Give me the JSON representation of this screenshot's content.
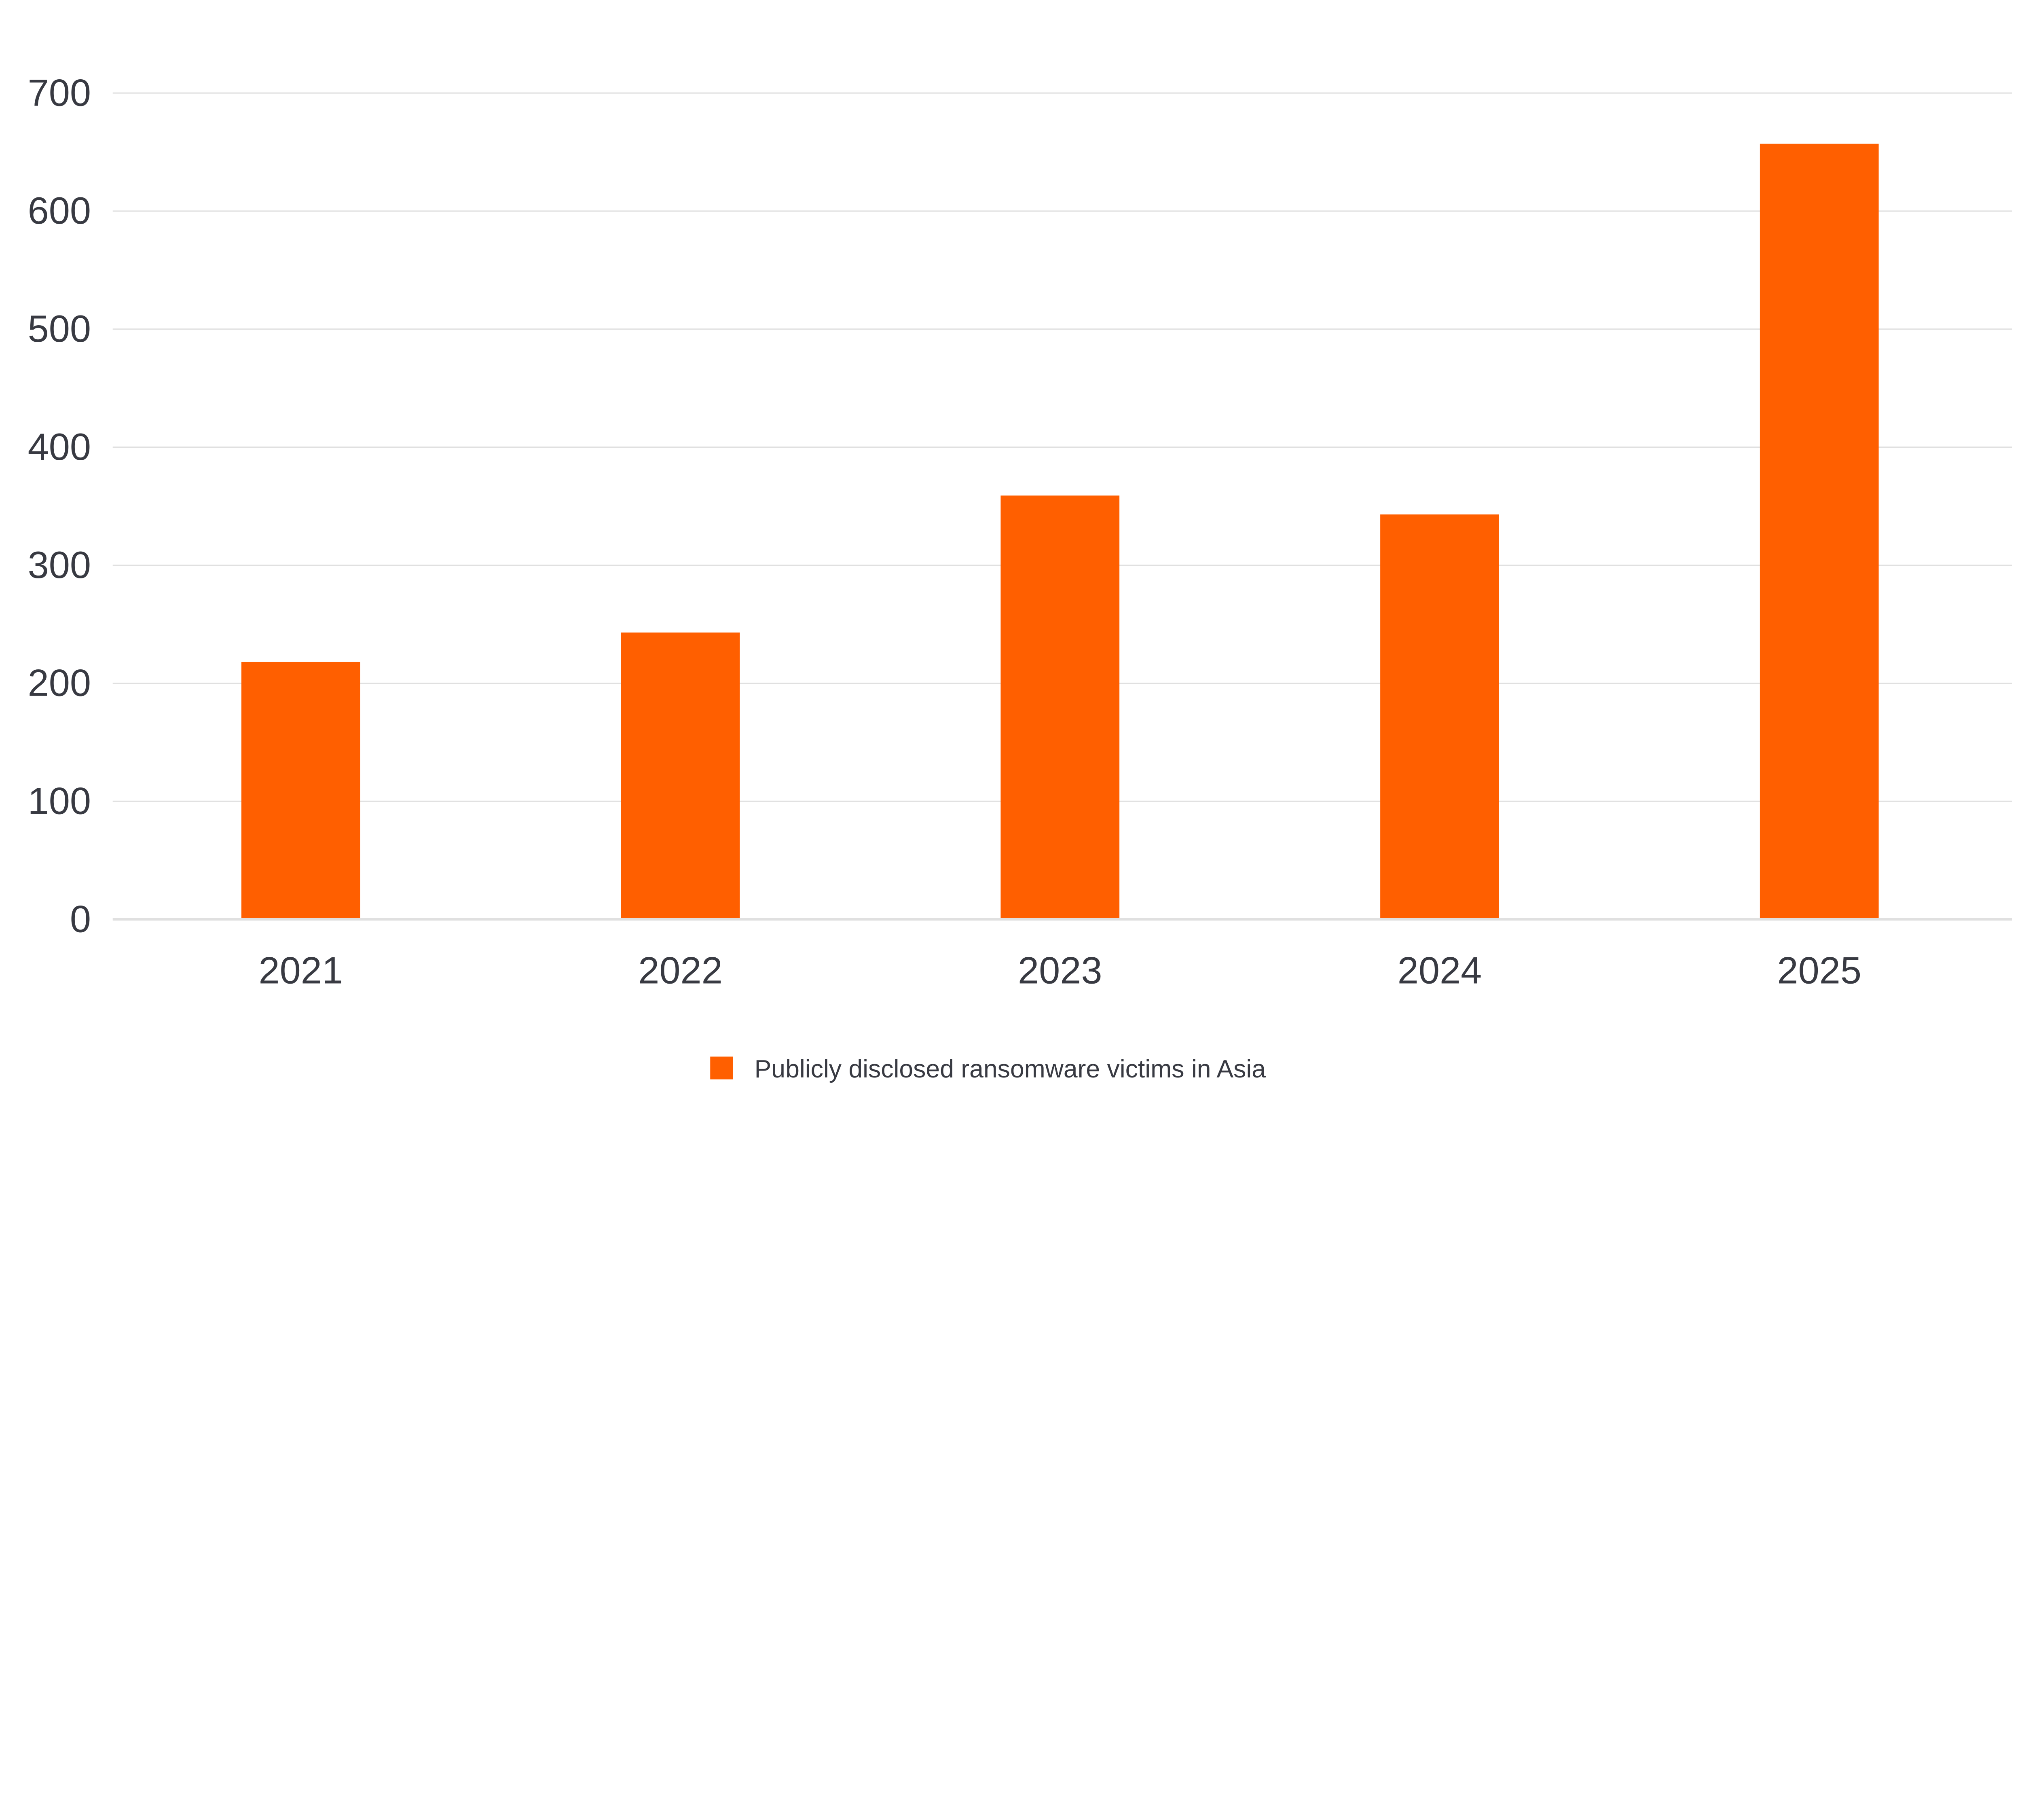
{
  "chart_data": {
    "type": "bar",
    "title": "",
    "xlabel": "",
    "ylabel": "",
    "categories": [
      "2021",
      "2022",
      "2023",
      "2024",
      "2025"
    ],
    "series": [
      {
        "name": "Publicly disclosed ransomware victims in Asia",
        "values": [
          218,
          243,
          359,
          343,
          657
        ],
        "color": "#ff5f00"
      }
    ],
    "ylim": [
      0,
      700
    ],
    "yticks": [
      0,
      100,
      200,
      300,
      400,
      500,
      600,
      700
    ],
    "grid": true,
    "gridColor": "#e0e0e0",
    "textColor": "#383a42",
    "legend": {
      "position": "bottom-center"
    }
  }
}
